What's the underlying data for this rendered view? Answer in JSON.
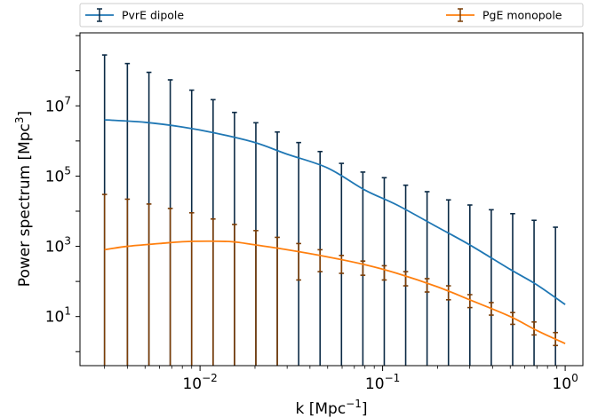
{
  "chart_data": {
    "type": "line",
    "x_scale": "log",
    "y_scale": "log",
    "xlim": [
      0.0022,
      1.25
    ],
    "ylim": [
      0.4,
      1200000000.0
    ],
    "grid": false,
    "legend_placement": "top, outside above plot",
    "xlabel": {
      "text": "k [Mpc",
      "sup": "−1",
      "close": "]"
    },
    "ylabel": {
      "text": "Power spectrum [Mpc",
      "sup": "3",
      "close": "]"
    },
    "x_ticks": [
      {
        "value": 0.01,
        "base": "10",
        "exp": "−2"
      },
      {
        "value": 0.1,
        "base": "10",
        "exp": "−1"
      },
      {
        "value": 1,
        "base": "10",
        "exp": "0"
      }
    ],
    "y_ticks": [
      {
        "value": 10,
        "base": "10",
        "exp": "1"
      },
      {
        "value": 1000,
        "base": "10",
        "exp": "3"
      },
      {
        "value": 100000,
        "base": "10",
        "exp": "5"
      },
      {
        "value": 10000000,
        "base": "10",
        "exp": "7"
      }
    ],
    "series": [
      {
        "name": "PvrE dipole",
        "color": "#1f77b4",
        "errcolor": "#0b2a45",
        "curve": {
          "x": [
            0.003,
            0.005,
            0.008,
            0.012,
            0.02,
            0.03,
            0.05,
            0.08,
            0.12,
            0.2,
            0.3,
            0.5,
            0.7,
            1.0
          ],
          "y": [
            4000000,
            3400000,
            2500000,
            1700000,
            900000,
            420000,
            170000,
            40000,
            15000,
            3500,
            1100,
            220,
            80,
            22
          ]
        },
        "points": {
          "x": [
            0.003,
            0.004,
            0.00525,
            0.00687,
            0.009,
            0.01179,
            0.01544,
            0.02022,
            0.02649,
            0.03469,
            0.04544,
            0.05952,
            0.07796,
            0.10211,
            0.13375,
            0.17518,
            0.22945,
            0.30053,
            0.39364,
            0.5156,
            0.67533,
            0.88456
          ],
          "y": [
            4000000,
            3700000,
            3400000,
            2900000,
            2500000,
            2000000,
            1500000,
            1000000,
            700000,
            420000,
            280000,
            140000,
            65000,
            30000,
            15000,
            7000,
            3000,
            1400,
            650,
            280,
            130,
            50
          ],
          "yerr_hi": [
            280000000,
            160000000,
            90000000,
            55000000,
            28000000,
            15000000,
            6500000,
            3300000,
            1800000,
            900000,
            500000,
            230000,
            130000,
            90000,
            55000,
            36000,
            21000,
            15000,
            11000,
            8500,
            5500,
            3500
          ]
        }
      },
      {
        "name": "PgE monopole",
        "color": "#ff7f0e",
        "errcolor": "#7a3d07",
        "curve": {
          "x": [
            0.003,
            0.004,
            0.006,
            0.008,
            0.011,
            0.015,
            0.02,
            0.03,
            0.05,
            0.08,
            0.12,
            0.2,
            0.3,
            0.5,
            0.7,
            1.0
          ],
          "y": [
            800,
            1000,
            1200,
            1350,
            1400,
            1350,
            1100,
            800,
            500,
            300,
            170,
            70,
            30,
            10,
            4,
            1.7
          ]
        },
        "points": {
          "x": [
            0.003,
            0.004,
            0.00525,
            0.00687,
            0.009,
            0.01179,
            0.01544,
            0.02022,
            0.02649,
            0.03469,
            0.04544,
            0.05952,
            0.07796,
            0.10211,
            0.13375,
            0.17518,
            0.22945,
            0.30053,
            0.39364,
            0.5156,
            0.67533,
            0.88456
          ],
          "y": [
            800,
            950,
            1100,
            1250,
            1350,
            1400,
            1350,
            1200,
            1000,
            800,
            620,
            460,
            340,
            240,
            160,
            100,
            60,
            35,
            20,
            10,
            5,
            2.4
          ],
          "yerr_hi": [
            30000,
            22000,
            16000,
            12000,
            9000,
            6000,
            4200,
            2800,
            1800,
            1200,
            800,
            550,
            380,
            280,
            190,
            120,
            75,
            42,
            25,
            13,
            7,
            3.5
          ],
          "yerr_lo": [
            null,
            null,
            null,
            null,
            null,
            null,
            null,
            null,
            null,
            110,
            190,
            170,
            150,
            110,
            75,
            50,
            30,
            18,
            11,
            6,
            3,
            1.5
          ]
        }
      }
    ]
  }
}
